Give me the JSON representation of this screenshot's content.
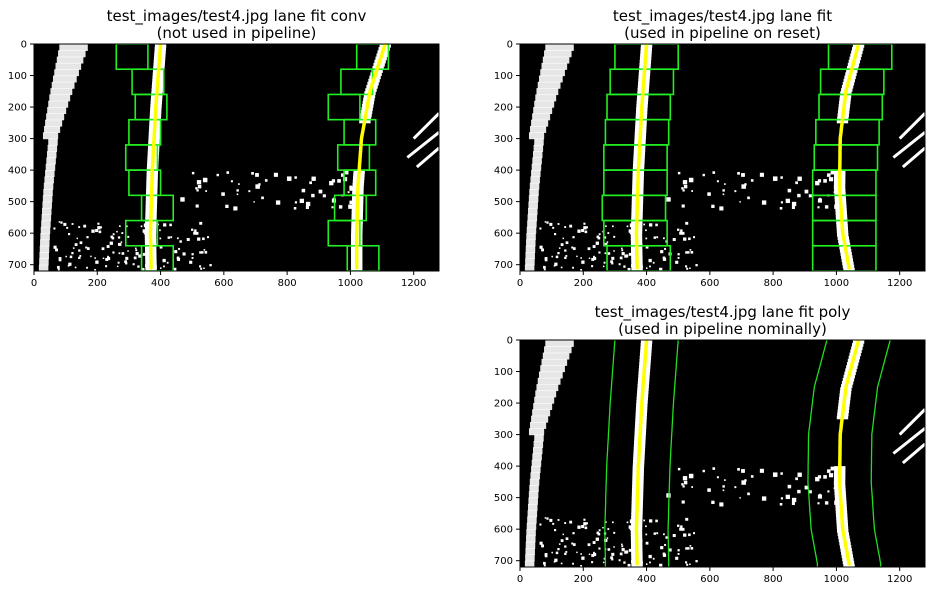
{
  "chart_data": [
    {
      "type": "image",
      "title_line1": "test_images/test4.jpg lane fit conv",
      "title_line2": "(not used in pipeline)",
      "xlim": [
        0,
        1280
      ],
      "ylim": [
        720,
        0
      ],
      "xticks": [
        0,
        200,
        400,
        600,
        800,
        1000,
        1200
      ],
      "yticks": [
        0,
        100,
        200,
        300,
        400,
        500,
        600,
        700
      ],
      "overlay": "windows",
      "fit_left": [
        [
          400,
          0
        ],
        [
          385,
          200
        ],
        [
          374,
          400
        ],
        [
          368,
          600
        ],
        [
          370,
          710
        ]
      ],
      "fit_right": [
        [
          1110,
          0
        ],
        [
          1062,
          150
        ],
        [
          1035,
          300
        ],
        [
          1024,
          450
        ],
        [
          1020,
          600
        ],
        [
          1020,
          710
        ]
      ],
      "windows": [
        [
          260,
          360,
          0,
          80
        ],
        [
          310,
          410,
          80,
          160
        ],
        [
          320,
          420,
          160,
          240
        ],
        [
          300,
          400,
          240,
          320
        ],
        [
          290,
          390,
          320,
          400
        ],
        [
          300,
          400,
          400,
          480
        ],
        [
          340,
          440,
          480,
          560
        ],
        [
          290,
          390,
          560,
          640
        ],
        [
          340,
          440,
          640,
          720
        ],
        [
          1020,
          1120,
          0,
          80
        ],
        [
          970,
          1070,
          80,
          160
        ],
        [
          930,
          1030,
          160,
          240
        ],
        [
          980,
          1080,
          240,
          320
        ],
        [
          960,
          1060,
          320,
          400
        ],
        [
          980,
          1080,
          400,
          480
        ],
        [
          950,
          1050,
          480,
          560
        ],
        [
          930,
          1030,
          560,
          640
        ],
        [
          990,
          1090,
          640,
          720
        ]
      ]
    },
    {
      "type": "image",
      "title_line1": "test_images/test4.jpg lane fit",
      "title_line2": "(used in pipeline on reset)",
      "xlim": [
        0,
        1280
      ],
      "ylim": [
        720,
        0
      ],
      "xticks": [
        0,
        200,
        400,
        600,
        800,
        1000,
        1200
      ],
      "yticks": [
        0,
        100,
        200,
        300,
        400,
        500,
        600,
        700
      ],
      "overlay": "windows",
      "fit_left": [
        [
          400,
          0
        ],
        [
          385,
          200
        ],
        [
          374,
          400
        ],
        [
          368,
          600
        ],
        [
          370,
          710
        ]
      ],
      "fit_right": [
        [
          1070,
          0
        ],
        [
          1030,
          150
        ],
        [
          1012,
          300
        ],
        [
          1010,
          450
        ],
        [
          1020,
          600
        ],
        [
          1040,
          710
        ]
      ],
      "windows": [
        [
          300,
          500,
          0,
          80
        ],
        [
          285,
          485,
          80,
          160
        ],
        [
          275,
          475,
          160,
          240
        ],
        [
          270,
          470,
          240,
          320
        ],
        [
          265,
          465,
          320,
          400
        ],
        [
          265,
          465,
          400,
          480
        ],
        [
          260,
          460,
          480,
          560
        ],
        [
          265,
          465,
          560,
          640
        ],
        [
          275,
          475,
          640,
          720
        ],
        [
          975,
          1175,
          0,
          80
        ],
        [
          950,
          1150,
          80,
          160
        ],
        [
          945,
          1145,
          160,
          240
        ],
        [
          935,
          1135,
          240,
          320
        ],
        [
          930,
          1130,
          320,
          400
        ],
        [
          925,
          1125,
          400,
          480
        ],
        [
          925,
          1125,
          480,
          560
        ],
        [
          925,
          1125,
          560,
          640
        ],
        [
          925,
          1125,
          640,
          720
        ]
      ]
    },
    {
      "type": "image",
      "title_line1": "test_images/test4.jpg lane fit poly",
      "title_line2": "(used in pipeline nominally)",
      "xlim": [
        0,
        1280
      ],
      "ylim": [
        720,
        0
      ],
      "xticks": [
        0,
        200,
        400,
        600,
        800,
        1000,
        1200
      ],
      "yticks": [
        0,
        100,
        200,
        300,
        400,
        500,
        600,
        700
      ],
      "overlay": "band",
      "band_halfwidth": 100,
      "fit_left": [
        [
          400,
          0
        ],
        [
          385,
          200
        ],
        [
          374,
          400
        ],
        [
          368,
          600
        ],
        [
          370,
          710
        ]
      ],
      "fit_right": [
        [
          1070,
          0
        ],
        [
          1030,
          150
        ],
        [
          1012,
          300
        ],
        [
          1010,
          450
        ],
        [
          1020,
          600
        ],
        [
          1040,
          710
        ]
      ]
    }
  ]
}
